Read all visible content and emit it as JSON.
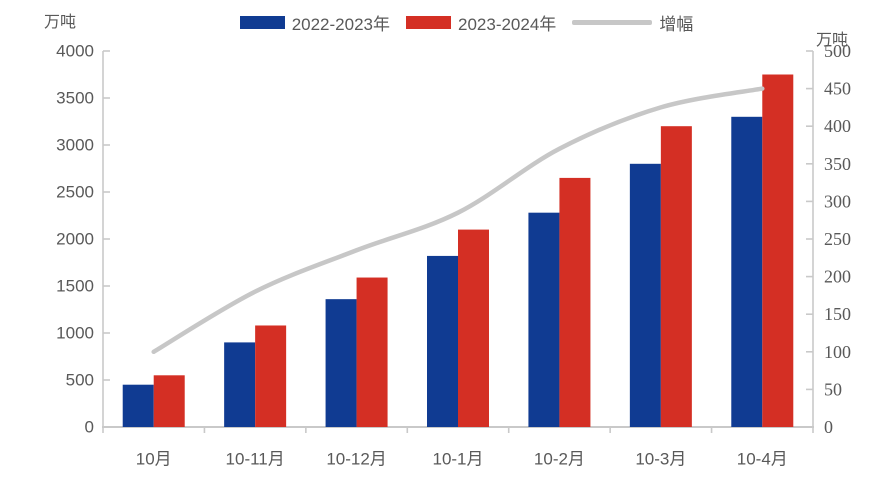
{
  "chart_data": {
    "type": "bar",
    "subtype": "grouped-bars-with-line-overlay",
    "title": "",
    "categories": [
      "10月",
      "10-11月",
      "10-12月",
      "10-1月",
      "10-2月",
      "10-3月",
      "10-4月"
    ],
    "series": [
      {
        "name": "2022-2023年",
        "type": "bar",
        "axis": "left",
        "color": "#103B92",
        "values": [
          450,
          900,
          1360,
          1820,
          2280,
          2800,
          3300
        ]
      },
      {
        "name": "2023-2024年",
        "type": "bar",
        "axis": "left",
        "color": "#D42F24",
        "values": [
          550,
          1080,
          1590,
          2100,
          2650,
          3200,
          3750
        ]
      },
      {
        "name": "增幅",
        "type": "line",
        "axis": "right",
        "color": "#C7C7C7",
        "values": [
          100,
          180,
          235,
          285,
          370,
          425,
          450
        ]
      }
    ],
    "left_axis": {
      "unit": "万吨",
      "min": 0,
      "max": 4000,
      "step": 500,
      "ticks": [
        0,
        500,
        1000,
        1500,
        2000,
        2500,
        3000,
        3500,
        4000
      ]
    },
    "right_axis": {
      "unit": "万吨",
      "min": 0,
      "max": 500,
      "step": 50,
      "ticks": [
        0,
        50,
        100,
        150,
        200,
        250,
        300,
        350,
        400,
        450,
        500
      ]
    },
    "grid": false,
    "legend_position": "top",
    "colors": {
      "bar_blue": "#103B92",
      "bar_red": "#D42F24",
      "line_gray": "#C7C7C7",
      "axis_line": "#C9C9C9",
      "label_text": "#595959"
    }
  }
}
